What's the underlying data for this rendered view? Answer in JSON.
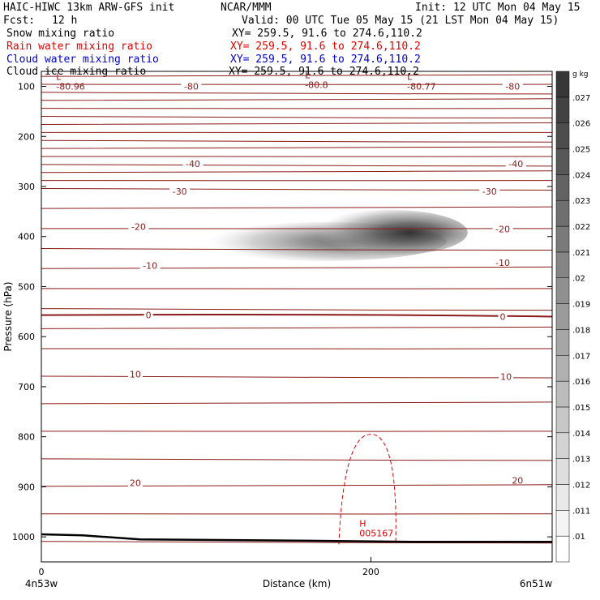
{
  "header": {
    "model_title": "HAIC-HIWC 13km ARW-GFS init",
    "org": "NCAR/MMM",
    "init": "Init: 12 UTC Mon 04 May 15",
    "fcst_label": "Fcst:",
    "fcst_value": "12 h",
    "valid": "Valid: 00 UTC Tue 05 May 15 (21 LST Mon 04 May 15)"
  },
  "fields": [
    {
      "name": "Snow mixing ratio",
      "xy": "XY= 259.5, 91.6 to 274.6,110.2",
      "color": "#000000"
    },
    {
      "name": "Rain water mixing ratio",
      "xy": "XY= 259.5, 91.6 to 274.6,110.2",
      "color": "#e00000"
    },
    {
      "name": "Cloud water mixing ratio",
      "xy": "XY= 259.5, 91.6 to 274.6,110.2",
      "color": "#0000d0"
    },
    {
      "name": "Cloud ice mixing ratio",
      "xy": "XY= 259.5, 91.6 to 274.6,110.2",
      "color": "#000000"
    }
  ],
  "colors": {
    "isotherm": "#8b1a1a",
    "rain_contour": "#e00000",
    "terrain": "#000000",
    "shading": "#404040"
  },
  "chart_data": {
    "type": "heatmap",
    "xlabel": "Distance (km)",
    "ylabel": "Pressure (hPa)",
    "xlim": [
      0,
      310
    ],
    "ylim": [
      1050,
      70
    ],
    "x_ticks": [
      0,
      200
    ],
    "y_ticks": [
      100,
      200,
      300,
      400,
      500,
      600,
      700,
      800,
      900,
      1000
    ],
    "x_end_labels": {
      "left": "4n53w",
      "right": "6n51w"
    },
    "colorbar": {
      "unit": "g kg",
      "unit_exp": "−1",
      "levels": [
        ".01",
        ".011",
        ".012",
        ".013",
        ".014",
        ".015",
        ".016",
        ".017",
        ".018",
        ".019",
        ".02",
        ".021",
        ".022",
        ".023",
        ".024",
        ".025",
        ".026",
        ".027"
      ]
    },
    "isotherm_labels": [
      {
        "text": "-80",
        "x": 91,
        "p": 100
      },
      {
        "text": "-80",
        "x": 286,
        "p": 100
      },
      {
        "text": "-40",
        "x": 92,
        "p": 255
      },
      {
        "text": "-40",
        "x": 288,
        "p": 255
      },
      {
        "text": "-30",
        "x": 84,
        "p": 310
      },
      {
        "text": "-30",
        "x": 272,
        "p": 310
      },
      {
        "text": "-20",
        "x": 59,
        "p": 380
      },
      {
        "text": "-20",
        "x": 280,
        "p": 385
      },
      {
        "text": "-10",
        "x": 66,
        "p": 458
      },
      {
        "text": "-10",
        "x": 280,
        "p": 452
      },
      {
        "text": "0",
        "x": 65,
        "p": 557
      },
      {
        "text": "0",
        "x": 280,
        "p": 560
      },
      {
        "text": "10",
        "x": 57,
        "p": 675
      },
      {
        "text": "10",
        "x": 282,
        "p": 680
      },
      {
        "text": "20",
        "x": 57,
        "p": 892
      },
      {
        "text": "20",
        "x": 289,
        "p": 887
      }
    ],
    "extrema": [
      {
        "type": "L",
        "value": "-80.96",
        "x": 9,
        "p": 95
      },
      {
        "type": "L",
        "value": "-80.8",
        "x": 160,
        "p": 92
      },
      {
        "type": "L",
        "value": "-80.77",
        "x": 222,
        "p": 95
      },
      {
        "type": "H",
        "value": "005167",
        "x": 193,
        "p": 988
      }
    ],
    "snow_max": {
      "x": 212,
      "p": 392,
      "value": 0.027
    }
  }
}
